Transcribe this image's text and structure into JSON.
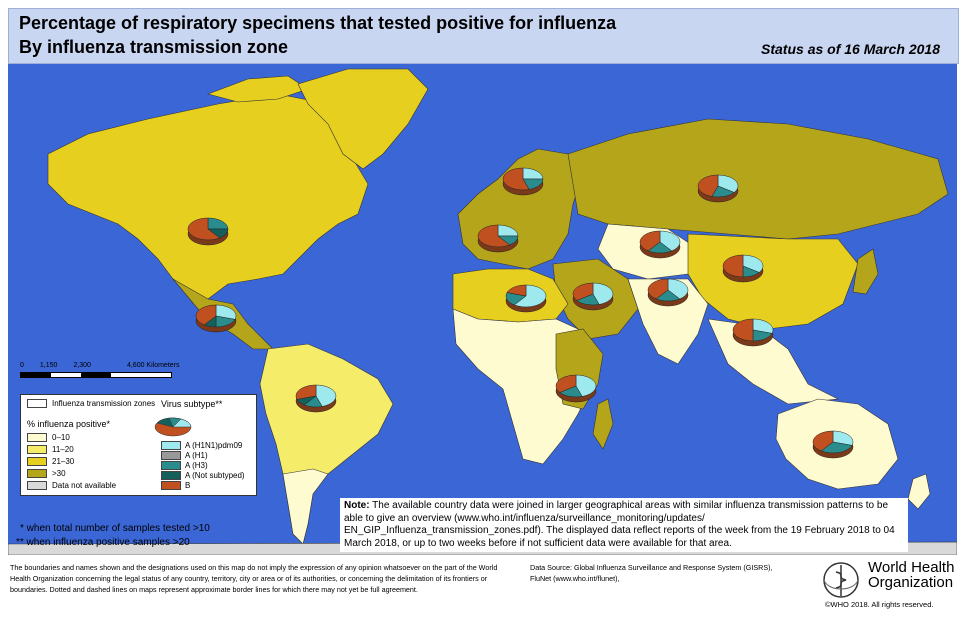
{
  "header": {
    "title_line1": "Percentage of respiratory specimens that tested positive for influenza",
    "title_line2": "By influenza transmission zone",
    "status": "Status as of 16 March 2018"
  },
  "colors": {
    "ocean": "#3b66d6",
    "pct_0_10": "#fffbd0",
    "pct_11_20": "#f5ec6a",
    "pct_21_30": "#e6cf1e",
    "pct_gt30": "#b5a51a",
    "no_data": "#d9d9d9",
    "A_H1N1pdm09": "#9ee9ee",
    "A_H1": "#999999",
    "A_H3": "#2a8c8c",
    "A_not_subtyped": "#15605a",
    "B": "#c0501f"
  },
  "scale_bar": {
    "ticks": [
      "0",
      "1,150",
      "2,300",
      "4,600 Kilometers"
    ]
  },
  "legend": {
    "zones_label": "Influenza transmission zones",
    "virus_subtype_label": "Virus subtype**",
    "pct_title": "% influenza positive*",
    "pct_items": [
      {
        "label": "0–10",
        "color": "#fffbd0"
      },
      {
        "label": "11–20",
        "color": "#f5ec6a"
      },
      {
        "label": "21–30",
        "color": "#e6cf1e"
      },
      {
        "label": ">30",
        "color": "#b5a51a"
      },
      {
        "label": "Data not available",
        "color": "#d9d9d9"
      }
    ],
    "subtype_items": [
      {
        "label": "A (H1N1)pdm09",
        "color": "#9ee9ee"
      },
      {
        "label": "A (H1)",
        "color": "#999999"
      },
      {
        "label": "A (H3)",
        "color": "#2a8c8c"
      },
      {
        "label": "A (Not subtyped)",
        "color": "#15605a"
      },
      {
        "label": "B",
        "color": "#c0501f"
      }
    ]
  },
  "footnotes": {
    "single": "*   when total number of samples tested >10",
    "double": "** when influenza positive samples >20"
  },
  "note": {
    "label": "Note:",
    "text": "The available country data were joined in larger geographical areas with similar influenza transmission patterns to be able to give an overview (www.who.int/influenza/surveillance_monitoring/updates/ EN_GIP_Influenza_transmission_zones.pdf). The displayed data reflect reports of the week from the 19 February 2018 to 04 March 2018, or up to two weeks before if not sufficient data were available for that area."
  },
  "disclaimer": "The boundaries and names shown and the designations used on this map do not imply the expression of any opinion whatsoever on the part of the World Health Organization concerning the legal status of any country, territory, city or area or of its authorities, or concerning the delimitation of its frontiers or boundaries. Dotted and dashed lines on maps represent approximate border lines for which there may not yet be full agreement.",
  "data_source": {
    "line1": "Data Source: Global Influenza Surveillance and Response System (GISRS),",
    "line2": "FluNet (www.who.int/flunet),"
  },
  "organization": {
    "name_line1": "World Health",
    "name_line2": "Organization"
  },
  "copyright": "©WHO 2018. All rights reserved.",
  "zones": [
    {
      "name": "north-america",
      "B": 0.6,
      "A_H3": 0.25,
      "A_not_subtyped": 0.15
    },
    {
      "name": "central-america-caribbean",
      "B": 0.4,
      "A_H1N1pdm09": 0.3,
      "A_H3": 0.2,
      "A_not_subtyped": 0.1
    },
    {
      "name": "tropical-south-america",
      "B": 0.3,
      "A_H1N1pdm09": 0.45,
      "A_H3": 0.15,
      "A_not_subtyped": 0.1
    },
    {
      "name": "northern-europe",
      "B": 0.55,
      "A_H1N1pdm09": 0.25,
      "A_H3": 0.2
    },
    {
      "name": "south-west-europe",
      "B": 0.6,
      "A_H1N1pdm09": 0.25,
      "A_H3": 0.15
    },
    {
      "name": "eastern-europe",
      "B": 0.45,
      "A_H1N1pdm09": 0.35,
      "A_H3": 0.2
    },
    {
      "name": "central-asia",
      "B": 0.4,
      "A_H1N1pdm09": 0.4,
      "A_H3": 0.2
    },
    {
      "name": "northern-africa",
      "B": 0.2,
      "A_H1N1pdm09": 0.6,
      "A_H3": 0.2
    },
    {
      "name": "western-asia",
      "B": 0.35,
      "A_H1N1pdm09": 0.45,
      "A_H3": 0.2
    },
    {
      "name": "southern-asia",
      "B": 0.4,
      "A_H1N1pdm09": 0.4,
      "A_H3": 0.2
    },
    {
      "name": "eastern-asia",
      "B": 0.5,
      "A_H1N1pdm09": 0.35,
      "A_H3": 0.15
    },
    {
      "name": "south-east-asia",
      "B": 0.5,
      "A_H1N1pdm09": 0.3,
      "A_H3": 0.2
    },
    {
      "name": "eastern-africa",
      "B": 0.35,
      "A_H1N1pdm09": 0.45,
      "A_H3": 0.2
    },
    {
      "name": "oceania",
      "B": 0.4,
      "A_H1N1pdm09": 0.3,
      "A_H3": 0.3
    }
  ]
}
